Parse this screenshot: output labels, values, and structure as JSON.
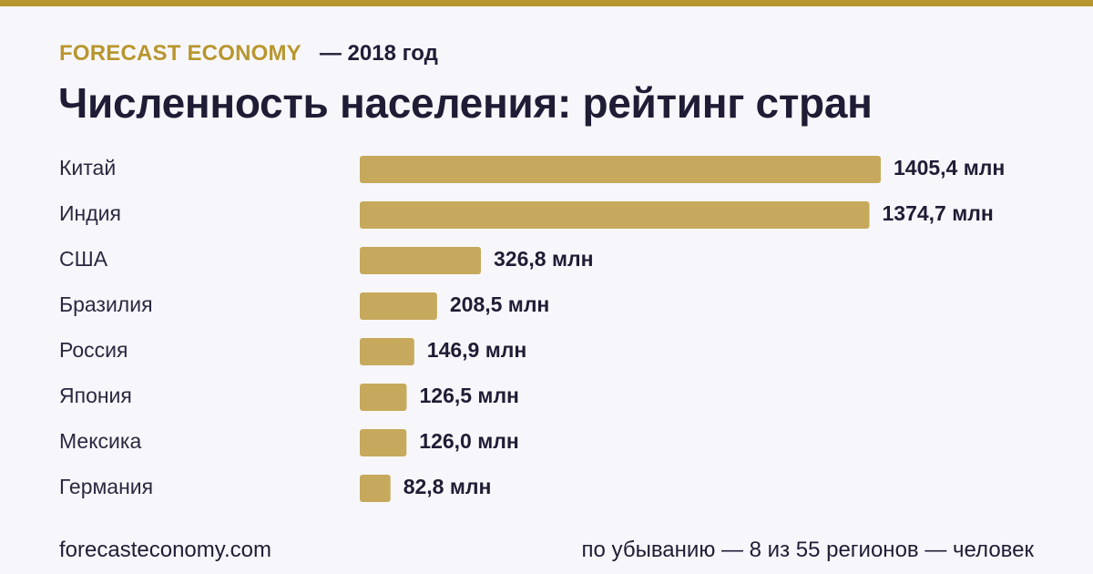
{
  "header": {
    "brand": "FORECAST ECONOMY",
    "year_label": "— 2018 год",
    "title": "Численность населения: рейтинг стран"
  },
  "colors": {
    "accent": "#b8962e",
    "bar": "#c6a95c",
    "text": "#1f1d35",
    "background": "#f7f7fb"
  },
  "chart_data": {
    "type": "bar",
    "orientation": "horizontal",
    "title": "Численность населения: рейтинг стран",
    "xlabel": "",
    "ylabel": "",
    "categories": [
      "Китай",
      "Индия",
      "США",
      "Бразилия",
      "Россия",
      "Япония",
      "Мексика",
      "Германия"
    ],
    "values": [
      1405.4,
      1374.7,
      326.8,
      208.5,
      146.9,
      126.5,
      126.0,
      82.8
    ],
    "value_labels": [
      "1405,4 млн",
      "1374,7 млн",
      "326,8 млн",
      "208,5 млн",
      "146,9 млн",
      "126,5 млн",
      "126,0 млн",
      "82,8 млн"
    ],
    "unit": "млн",
    "xlim": [
      0,
      1405.4
    ],
    "grid": false,
    "legend": "none"
  },
  "footer": {
    "source": "forecasteconomy.com",
    "note": "по убыванию — 8 из 55 регионов — человек"
  }
}
